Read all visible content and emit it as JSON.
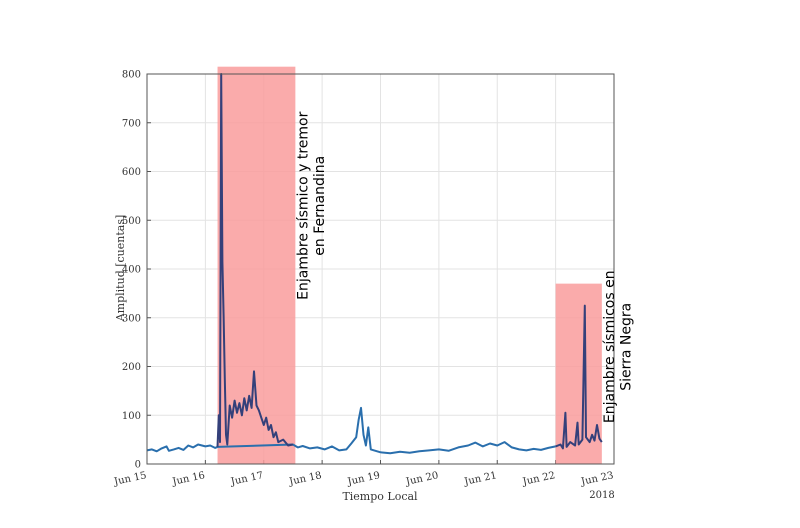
{
  "chart_data": {
    "type": "line",
    "xlabel": "Tiempo Local",
    "ylabel": "Amplitud [cuentas]",
    "year_label": "2018",
    "x_ticks": [
      "Jun 15",
      "Jun 16",
      "Jun 17",
      "Jun 18",
      "Jun 19",
      "Jun 20",
      "Jun 21",
      "Jun 22",
      "Jun 23"
    ],
    "y_ticks": [
      0,
      100,
      200,
      300,
      400,
      500,
      600,
      700,
      800
    ],
    "xlim": [
      "2018-06-15T00:00",
      "2018-06-23T00:00"
    ],
    "ylim": [
      0,
      800
    ],
    "grid": true,
    "colors": {
      "series_main": "#2a6fad",
      "series_swarm": "#34407a",
      "highlight": "#f99c9c"
    },
    "highlights": [
      {
        "x_start": "2018-06-16T05:00",
        "x_end": "2018-06-17T13:00",
        "y_top": 815,
        "lines": [
          "Enjambre sísmico y tremor",
          "en Fernandina"
        ]
      },
      {
        "x_start": "2018-06-22T00:00",
        "x_end": "2018-06-22T19:00",
        "y_top": 370,
        "lines": [
          "Enjambre sísmicos en",
          "Sierra Negra"
        ]
      }
    ],
    "series": [
      {
        "points": [
          [
            "2018-06-15T00:00",
            28
          ],
          [
            "2018-06-15T02:00",
            30
          ],
          [
            "2018-06-15T04:00",
            26
          ],
          [
            "2018-06-15T06:00",
            32
          ],
          [
            "2018-06-15T08:00",
            36
          ],
          [
            "2018-06-15T09:00",
            27
          ],
          [
            "2018-06-15T11:00",
            30
          ],
          [
            "2018-06-15T13:00",
            33
          ],
          [
            "2018-06-15T15:00",
            29
          ],
          [
            "2018-06-15T17:00",
            38
          ],
          [
            "2018-06-15T19:00",
            34
          ],
          [
            "2018-06-15T21:00",
            40
          ],
          [
            "2018-06-16T00:00",
            36
          ],
          [
            "2018-06-16T02:00",
            38
          ],
          [
            "2018-06-16T04:00",
            33
          ],
          [
            "2018-06-16T05:00",
            35
          ],
          [
            "2018-06-17T12:00",
            40
          ],
          [
            "2018-06-17T14:00",
            34
          ],
          [
            "2018-06-17T16:00",
            37
          ],
          [
            "2018-06-17T19:00",
            32
          ],
          [
            "2018-06-17T22:00",
            34
          ],
          [
            "2018-06-18T01:00",
            30
          ],
          [
            "2018-06-18T04:00",
            36
          ],
          [
            "2018-06-18T07:00",
            28
          ],
          [
            "2018-06-18T10:00",
            30
          ],
          [
            "2018-06-18T12:00",
            42
          ],
          [
            "2018-06-18T14:00",
            55
          ],
          [
            "2018-06-18T15:00",
            90
          ],
          [
            "2018-06-18T16:00",
            115
          ],
          [
            "2018-06-18T17:00",
            60
          ],
          [
            "2018-06-18T18:00",
            38
          ],
          [
            "2018-06-18T19:00",
            75
          ],
          [
            "2018-06-18T20:00",
            30
          ],
          [
            "2018-06-19T00:00",
            24
          ],
          [
            "2018-06-19T04:00",
            22
          ],
          [
            "2018-06-19T08:00",
            25
          ],
          [
            "2018-06-19T12:00",
            23
          ],
          [
            "2018-06-19T16:00",
            26
          ],
          [
            "2018-06-19T20:00",
            28
          ],
          [
            "2018-06-20T00:00",
            30
          ],
          [
            "2018-06-20T04:00",
            27
          ],
          [
            "2018-06-20T08:00",
            34
          ],
          [
            "2018-06-20T12:00",
            38
          ],
          [
            "2018-06-20T15:00",
            44
          ],
          [
            "2018-06-20T18:00",
            36
          ],
          [
            "2018-06-20T21:00",
            42
          ],
          [
            "2018-06-21T00:00",
            38
          ],
          [
            "2018-06-21T03:00",
            45
          ],
          [
            "2018-06-21T06:00",
            34
          ],
          [
            "2018-06-21T09:00",
            30
          ],
          [
            "2018-06-21T12:00",
            28
          ],
          [
            "2018-06-21T15:00",
            31
          ],
          [
            "2018-06-21T18:00",
            29
          ],
          [
            "2018-06-21T21:00",
            33
          ],
          [
            "2018-06-22T00:00",
            36
          ]
        ]
      },
      {
        "points": [
          [
            "2018-06-16T05:00",
            35
          ],
          [
            "2018-06-16T05:30",
            100
          ],
          [
            "2018-06-16T06:00",
            45
          ],
          [
            "2018-06-16T06:30",
            800
          ],
          [
            "2018-06-16T07:00",
            415
          ],
          [
            "2018-06-16T07:30",
            305
          ],
          [
            "2018-06-16T08:00",
            175
          ],
          [
            "2018-06-16T08:30",
            60
          ],
          [
            "2018-06-16T09:00",
            40
          ],
          [
            "2018-06-16T10:00",
            120
          ],
          [
            "2018-06-16T11:00",
            95
          ],
          [
            "2018-06-16T12:00",
            130
          ],
          [
            "2018-06-16T13:00",
            105
          ],
          [
            "2018-06-16T14:00",
            125
          ],
          [
            "2018-06-16T15:00",
            100
          ],
          [
            "2018-06-16T16:00",
            135
          ],
          [
            "2018-06-16T17:00",
            110
          ],
          [
            "2018-06-16T18:00",
            140
          ],
          [
            "2018-06-16T19:00",
            115
          ],
          [
            "2018-06-16T20:00",
            190
          ],
          [
            "2018-06-16T21:00",
            120
          ],
          [
            "2018-06-16T22:00",
            110
          ],
          [
            "2018-06-16T23:00",
            95
          ],
          [
            "2018-06-17T00:00",
            80
          ],
          [
            "2018-06-17T01:00",
            95
          ],
          [
            "2018-06-17T02:00",
            70
          ],
          [
            "2018-06-17T03:00",
            80
          ],
          [
            "2018-06-17T04:00",
            55
          ],
          [
            "2018-06-17T05:00",
            65
          ],
          [
            "2018-06-17T06:00",
            45
          ],
          [
            "2018-06-17T08:00",
            50
          ],
          [
            "2018-06-17T10:00",
            38
          ],
          [
            "2018-06-17T12:00",
            40
          ]
        ]
      },
      {
        "points": [
          [
            "2018-06-22T00:00",
            36
          ],
          [
            "2018-06-22T02:00",
            40
          ],
          [
            "2018-06-22T03:00",
            32
          ],
          [
            "2018-06-22T04:00",
            105
          ],
          [
            "2018-06-22T04:30",
            35
          ],
          [
            "2018-06-22T06:00",
            45
          ],
          [
            "2018-06-22T08:00",
            38
          ],
          [
            "2018-06-22T09:00",
            85
          ],
          [
            "2018-06-22T09:30",
            40
          ],
          [
            "2018-06-22T11:00",
            50
          ],
          [
            "2018-06-22T12:00",
            325
          ],
          [
            "2018-06-22T12:30",
            55
          ],
          [
            "2018-06-22T14:00",
            45
          ],
          [
            "2018-06-22T15:00",
            60
          ],
          [
            "2018-06-22T16:00",
            48
          ],
          [
            "2018-06-22T17:00",
            80
          ],
          [
            "2018-06-22T18:00",
            52
          ],
          [
            "2018-06-22T19:00",
            45
          ]
        ]
      }
    ]
  }
}
